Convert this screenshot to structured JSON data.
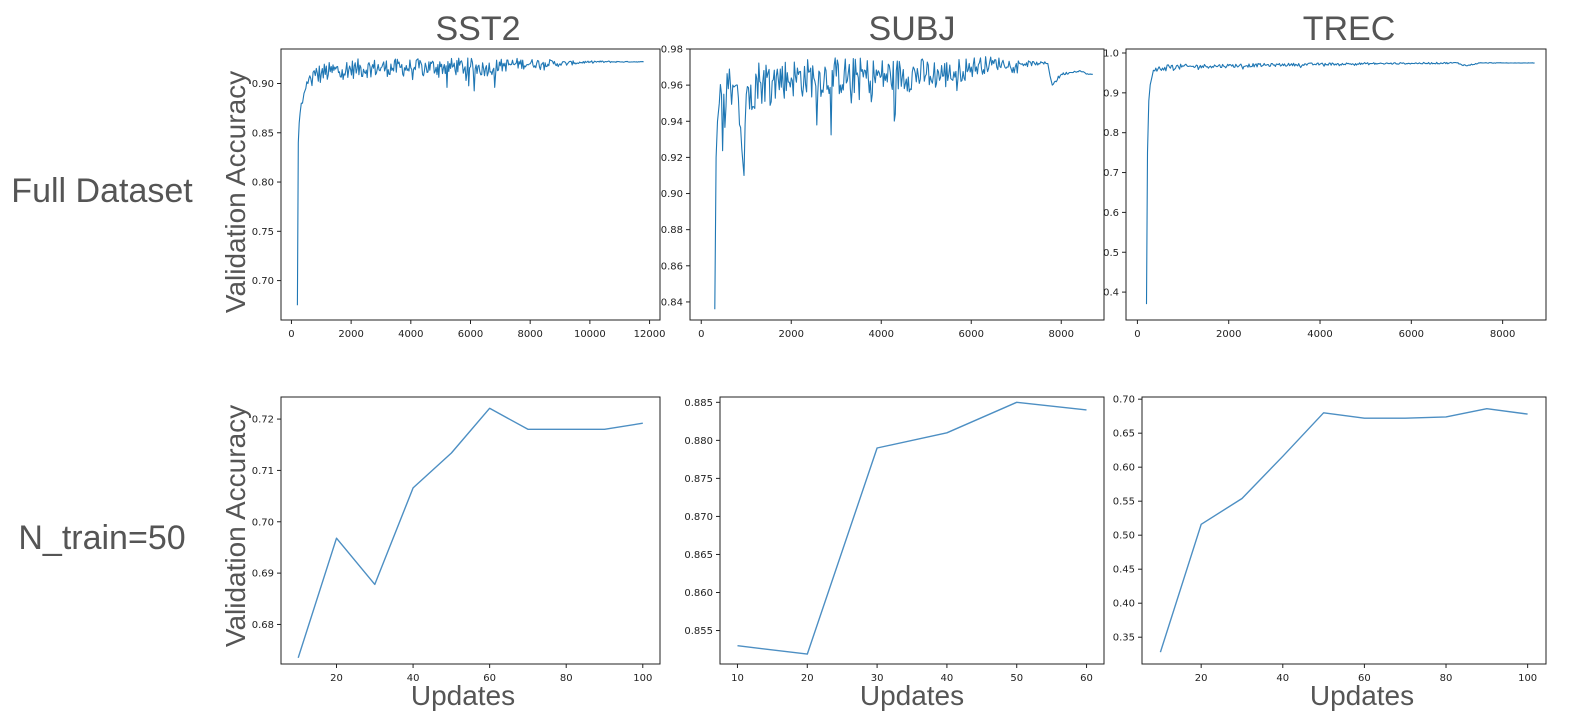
{
  "figure": {
    "columns": [
      "SST2",
      "SUBJ",
      "TREC"
    ],
    "rows": [
      "Full Dataset",
      "N_train=50"
    ],
    "ylabel": "Validation Accuracy",
    "xlabel": "Updates"
  },
  "chart_data": [
    {
      "type": "line",
      "title": "SST2",
      "row": "Full Dataset",
      "ylabel": "Validation Accuracy",
      "xlabel": "",
      "xlim": [
        -350,
        12350
      ],
      "ylim": [
        0.66,
        0.935
      ],
      "grid": false,
      "xticks": [
        0,
        2000,
        4000,
        6000,
        8000,
        10000,
        12000
      ],
      "yticks": [
        0.7,
        0.75,
        0.8,
        0.85,
        0.9
      ],
      "series": [
        {
          "color": "#1f77b4",
          "noisy": true,
          "x": [
            200,
            230,
            260,
            290,
            330,
            370,
            420,
            480,
            550,
            650,
            800,
            1000,
            1300,
            1700,
            2200,
            3000,
            4000,
            5000,
            6000,
            6500,
            7000,
            7500,
            8000,
            8500,
            9000,
            9500,
            10000,
            10500,
            11000,
            11500,
            11800
          ],
          "y": [
            0.675,
            0.84,
            0.86,
            0.87,
            0.88,
            0.88,
            0.89,
            0.895,
            0.9,
            0.905,
            0.908,
            0.91,
            0.912,
            0.914,
            0.915,
            0.916,
            0.916,
            0.917,
            0.917,
            0.915,
            0.918,
            0.92,
            0.92,
            0.921,
            0.92,
            0.921,
            0.922,
            0.922,
            0.922,
            0.922,
            0.922
          ],
          "amp": [
            0,
            0,
            0,
            0.02,
            0.018,
            0.017,
            0.015,
            0.014,
            0.013,
            0.012,
            0.012,
            0.011,
            0.01,
            0.01,
            0.01,
            0.009,
            0.009,
            0.009,
            0.009,
            0.008,
            0.007,
            0.006,
            0.005,
            0.004,
            0.003,
            0.002,
            0.001,
            0.001,
            0.0005,
            0.0003,
            0.0003
          ]
        }
      ]
    },
    {
      "type": "line",
      "title": "SUBJ",
      "row": "Full Dataset",
      "ylabel": "",
      "xlabel": "",
      "xlim": [
        -250,
        8950
      ],
      "ylim": [
        0.83,
        0.98
      ],
      "grid": false,
      "xticks": [
        0,
        2000,
        4000,
        6000,
        8000
      ],
      "yticks": [
        0.84,
        0.86,
        0.88,
        0.9,
        0.92,
        0.94,
        0.96,
        0.98
      ],
      "series": [
        {
          "color": "#1f77b4",
          "noisy": true,
          "x": [
            300,
            330,
            360,
            400,
            450,
            500,
            600,
            700,
            800,
            950,
            1000,
            1100,
            1300,
            1600,
            2000,
            2500,
            3000,
            4000,
            5000,
            5500,
            6000,
            6500,
            7000,
            7500,
            7700,
            7800,
            8000,
            8200,
            8400,
            8600,
            8700
          ],
          "y": [
            0.836,
            0.92,
            0.94,
            0.95,
            0.955,
            0.955,
            0.958,
            0.96,
            0.96,
            0.91,
            0.955,
            0.96,
            0.962,
            0.963,
            0.964,
            0.964,
            0.965,
            0.965,
            0.966,
            0.966,
            0.97,
            0.972,
            0.972,
            0.972,
            0.972,
            0.96,
            0.966,
            0.967,
            0.968,
            0.966,
            0.966
          ],
          "amp": [
            0,
            0.01,
            0.012,
            0.015,
            0.015,
            0.016,
            0.015,
            0.015,
            0.016,
            0,
            0.015,
            0.015,
            0.013,
            0.012,
            0.011,
            0.011,
            0.011,
            0.01,
            0.009,
            0.008,
            0.006,
            0.004,
            0.002,
            0.001,
            0.001,
            0.001,
            0.001,
            0.0005,
            0.0005,
            0.0003,
            0.0003
          ]
        }
      ]
    },
    {
      "type": "line",
      "title": "TREC",
      "row": "Full Dataset",
      "ylabel": "",
      "xlabel": "",
      "xlim": [
        -250,
        8950
      ],
      "ylim": [
        0.33,
        1.01
      ],
      "grid": false,
      "xticks": [
        0,
        2000,
        4000,
        6000,
        8000
      ],
      "yticks": [
        0.4,
        0.5,
        0.6,
        0.7,
        0.8,
        0.9,
        1.0
      ],
      "series": [
        {
          "color": "#1f77b4",
          "noisy": true,
          "x": [
            200,
            220,
            250,
            280,
            320,
            380,
            450,
            550,
            700,
            900,
            1200,
            1600,
            2000,
            3000,
            4000,
            5000,
            6000,
            7000,
            7200,
            7500,
            8000,
            8700
          ],
          "y": [
            0.37,
            0.75,
            0.88,
            0.92,
            0.94,
            0.955,
            0.96,
            0.962,
            0.965,
            0.965,
            0.966,
            0.967,
            0.968,
            0.97,
            0.972,
            0.973,
            0.974,
            0.975,
            0.968,
            0.975,
            0.975,
            0.975
          ],
          "amp": [
            0,
            0,
            0.01,
            0.012,
            0.012,
            0.01,
            0.01,
            0.009,
            0.008,
            0.007,
            0.006,
            0.005,
            0.005,
            0.004,
            0.003,
            0.003,
            0.002,
            0.002,
            0.002,
            0.001,
            0.0005,
            0.0003
          ]
        }
      ]
    },
    {
      "type": "line",
      "title": "",
      "row": "N_train=50",
      "ylabel": "Validation Accuracy",
      "xlabel": "Updates",
      "xlim": [
        5.5,
        104.5
      ],
      "ylim": [
        0.6723,
        0.7243
      ],
      "grid": false,
      "xticks": [
        20,
        40,
        60,
        80,
        100
      ],
      "yticks": [
        0.68,
        0.69,
        0.7,
        0.71,
        0.72
      ],
      "series": [
        {
          "color": "#4d8fc3",
          "noisy": false,
          "x": [
            10,
            20,
            30,
            40,
            50,
            60,
            70,
            80,
            90,
            100
          ],
          "y": [
            0.6735,
            0.6968,
            0.6878,
            0.7066,
            0.7134,
            0.7221,
            0.718,
            0.718,
            0.718,
            0.7192
          ]
        }
      ]
    },
    {
      "type": "line",
      "title": "",
      "row": "N_train=50",
      "ylabel": "",
      "xlabel": "Updates",
      "xlim": [
        7.5,
        62.5
      ],
      "ylim": [
        0.8506,
        0.8857
      ],
      "grid": false,
      "xticks": [
        10,
        20,
        30,
        40,
        50,
        60
      ],
      "yticks": [
        0.855,
        0.86,
        0.865,
        0.87,
        0.875,
        0.88,
        0.885
      ],
      "series": [
        {
          "color": "#4d8fc3",
          "noisy": false,
          "x": [
            10,
            20,
            30,
            40,
            50,
            60
          ],
          "y": [
            0.853,
            0.8519,
            0.879,
            0.881,
            0.885,
            0.884
          ]
        }
      ]
    },
    {
      "type": "line",
      "title": "",
      "row": "N_train=50",
      "ylabel": "",
      "xlabel": "Updates",
      "xlim": [
        5.5,
        104.5
      ],
      "ylim": [
        0.3106,
        0.7032
      ],
      "grid": false,
      "xticks": [
        20,
        40,
        60,
        80,
        100
      ],
      "yticks": [
        0.35,
        0.4,
        0.45,
        0.5,
        0.55,
        0.6,
        0.65,
        0.7
      ],
      "series": [
        {
          "color": "#4d8fc3",
          "noisy": false,
          "x": [
            10,
            20,
            30,
            40,
            50,
            60,
            70,
            80,
            90,
            100
          ],
          "y": [
            0.328,
            0.516,
            0.554,
            0.616,
            0.68,
            0.672,
            0.672,
            0.674,
            0.686,
            0.678
          ]
        }
      ]
    }
  ]
}
